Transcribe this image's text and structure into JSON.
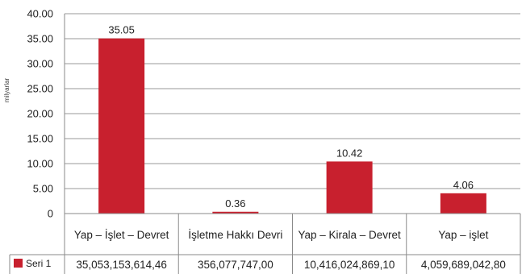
{
  "chart_data": {
    "type": "bar",
    "ylabel": "milyarlar",
    "ylim": [
      0,
      40
    ],
    "y_ticks": [
      "40.00",
      "35.00",
      "30.00",
      "25.00",
      "20.00",
      "15.00",
      "10.00",
      "5.00",
      "0"
    ],
    "grid": true,
    "categories": [
      "Yap – İşlet – Devret",
      "İşletme Hakkı Devri",
      "Yap – Kirala – Devret",
      "Yap – işlet"
    ],
    "series": [
      {
        "name": "Seri 1",
        "color": "#c8202e",
        "values": [
          35.05,
          0.36,
          10.42,
          4.06
        ],
        "data_labels": [
          "35.05",
          "0.36",
          "10.42",
          "4.06"
        ],
        "table_values": [
          "35,053,153,614,46",
          "356,077,747,00",
          "10,416,024,869,10",
          "4,059,689,042,80"
        ]
      }
    ],
    "legend": "data-table"
  }
}
